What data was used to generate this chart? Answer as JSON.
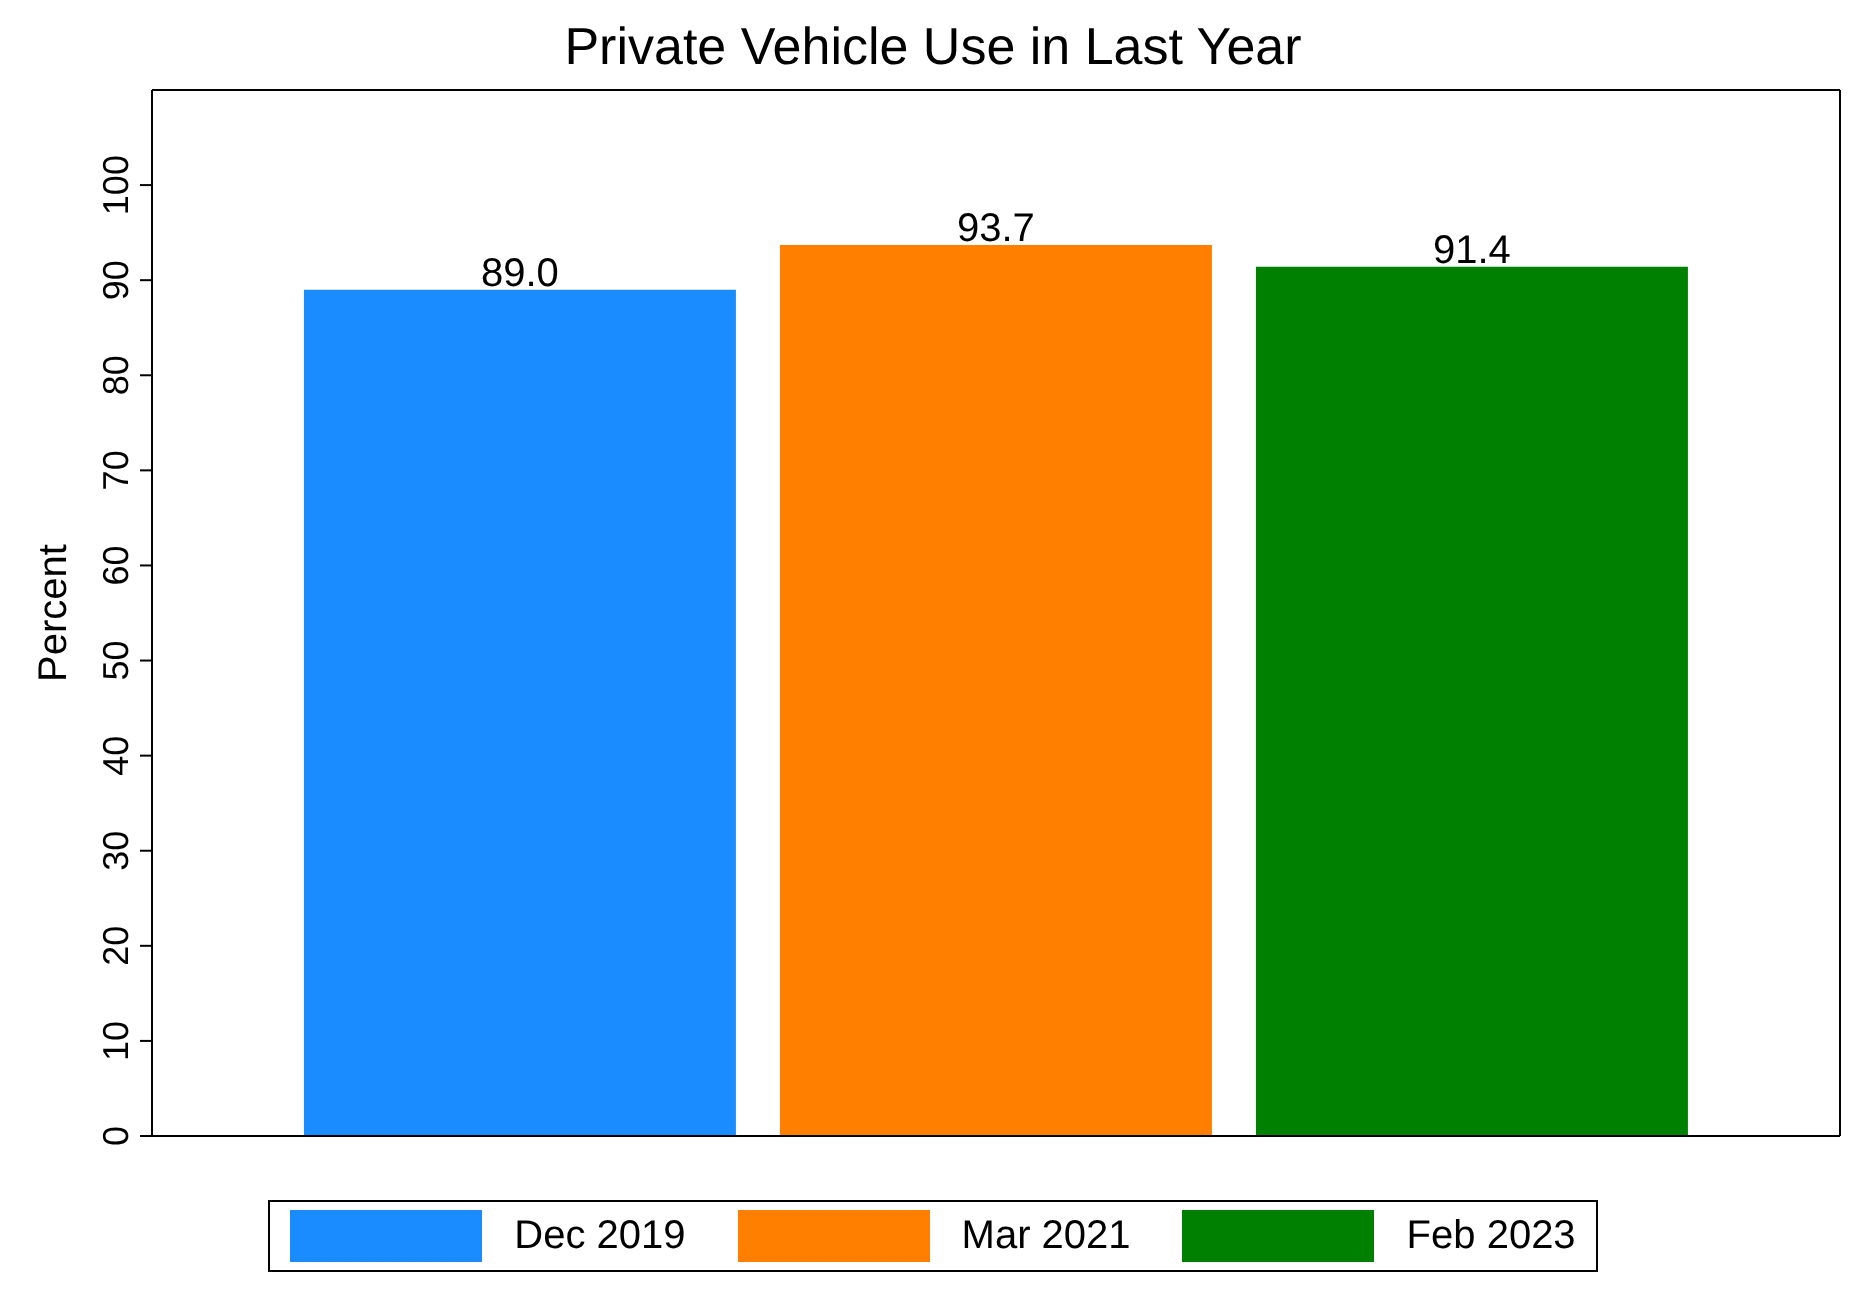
{
  "chart_data": {
    "type": "bar",
    "title": "Private Vehicle Use in Last Year",
    "ylabel": "Percent",
    "categories": [
      null
    ],
    "series": [
      {
        "name": "Dec 2019",
        "color": "#1a8cff",
        "values": [
          89.0
        ],
        "value_labels": [
          "89.0"
        ]
      },
      {
        "name": "Mar 2021",
        "color": "#ff7f00",
        "values": [
          93.7
        ],
        "value_labels": [
          "93.7"
        ]
      },
      {
        "name": "Feb 2023",
        "color": "#008000",
        "values": [
          91.4
        ],
        "value_labels": [
          "91.4"
        ]
      }
    ],
    "ylim": [
      0,
      110
    ],
    "yticks": [
      0,
      10,
      20,
      30,
      40,
      50,
      60,
      70,
      80,
      90,
      100
    ],
    "grid": false,
    "legend": "bottom"
  }
}
